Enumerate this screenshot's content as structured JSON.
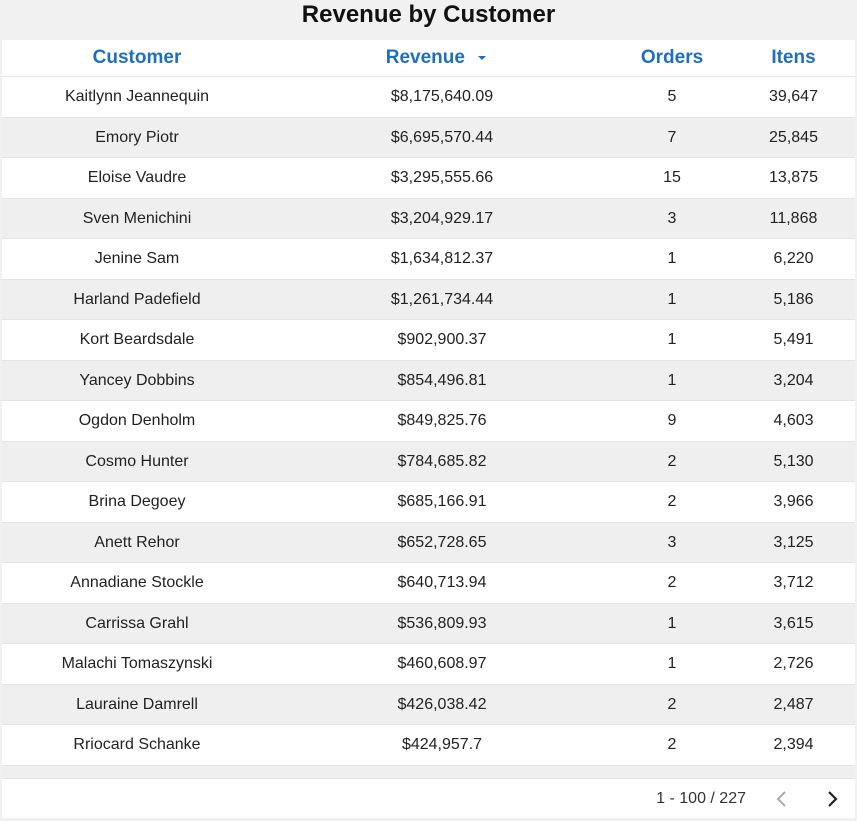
{
  "title": "Revenue by Customer",
  "table": {
    "header": [
      "Customer",
      "Revenue",
      "Orders",
      "Itens"
    ],
    "rows": [
      [
        "Kaitlynn Jeannequin",
        "$8,175,640.09",
        "5",
        "39,647"
      ],
      [
        "Emory Piotr",
        "$6,695,570.44",
        "7",
        "25,845"
      ],
      [
        "Eloise Vaudre",
        "$3,295,555.66",
        "15",
        "13,875"
      ],
      [
        "Sven Menichini",
        "$3,204,929.17",
        "3",
        "11,868"
      ],
      [
        "Jenine Sam",
        "$1,634,812.37",
        "1",
        "6,220"
      ],
      [
        "Harland Padefield",
        "$1,261,734.44",
        "1",
        "5,186"
      ],
      [
        "Kort Beardsdale",
        "$902,900.37",
        "1",
        "5,491"
      ],
      [
        "Yancey Dobbins",
        "$854,496.81",
        "1",
        "3,204"
      ],
      [
        "Ogdon Denholm",
        "$849,825.76",
        "9",
        "4,603"
      ],
      [
        "Cosmo Hunter",
        "$784,685.82",
        "2",
        "5,130"
      ],
      [
        "Brina Degoey",
        "$685,166.91",
        "2",
        "3,966"
      ],
      [
        "Anett Rehor",
        "$652,728.65",
        "3",
        "3,125"
      ],
      [
        "Annadiane Stockle",
        "$640,713.94",
        "2",
        "3,712"
      ],
      [
        "Carrissa Grahl",
        "$536,809.93",
        "1",
        "3,615"
      ],
      [
        "Malachi Tomaszynski",
        "$460,608.97",
        "1",
        "2,726"
      ],
      [
        "Lauraine Damrell",
        "$426,038.42",
        "2",
        "2,487"
      ],
      [
        "Rriocard Schanke",
        "$424,957.7",
        "2",
        "2,394"
      ]
    ]
  },
  "pagination": {
    "label": "1 - 100 / 227"
  }
}
